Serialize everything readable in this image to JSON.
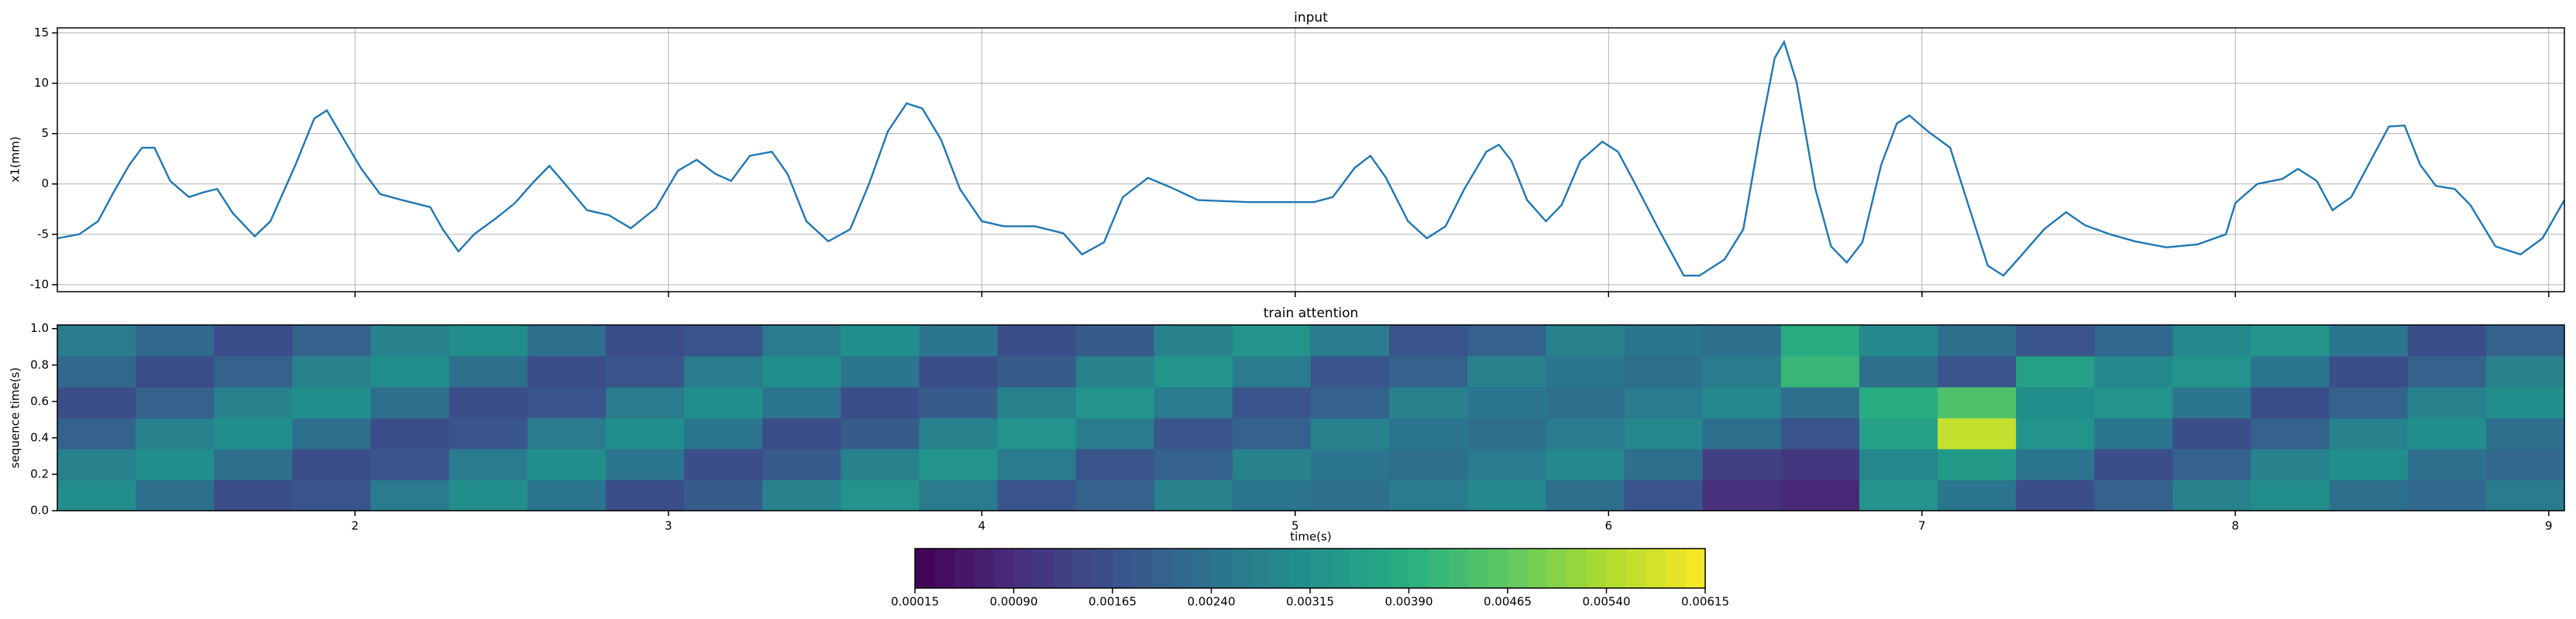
{
  "chart_data": [
    {
      "type": "line",
      "title": "input",
      "ylabel": "x1(mm)",
      "color": "#1f77b4",
      "grid": true,
      "x": [
        1.05,
        1.12,
        1.18,
        1.23,
        1.28,
        1.32,
        1.36,
        1.41,
        1.47,
        1.52,
        1.56,
        1.61,
        1.68,
        1.73,
        1.81,
        1.87,
        1.91,
        1.95,
        2.02,
        2.08,
        2.15,
        2.24,
        2.28,
        2.33,
        2.38,
        2.45,
        2.51,
        2.57,
        2.62,
        2.67,
        2.74,
        2.81,
        2.88,
        2.96,
        3.03,
        3.09,
        3.15,
        3.2,
        3.26,
        3.33,
        3.38,
        3.44,
        3.51,
        3.58,
        3.64,
        3.7,
        3.76,
        3.81,
        3.87,
        3.93,
        4.0,
        4.07,
        4.17,
        4.26,
        4.32,
        4.39,
        4.45,
        4.53,
        4.6,
        4.69,
        4.85,
        5.06,
        5.12,
        5.19,
        5.24,
        5.29,
        5.36,
        5.42,
        5.48,
        5.54,
        5.61,
        5.65,
        5.69,
        5.74,
        5.8,
        5.85,
        5.91,
        5.98,
        6.03,
        6.08,
        6.16,
        6.24,
        6.29,
        6.37,
        6.43,
        6.48,
        6.53,
        6.56,
        6.6,
        6.66,
        6.71,
        6.76,
        6.81,
        6.87,
        6.92,
        6.96,
        7.02,
        7.09,
        7.14,
        7.21,
        7.26,
        7.32,
        7.39,
        7.46,
        7.52,
        7.6,
        7.68,
        7.78,
        7.88,
        7.97,
        8.0,
        8.07,
        8.15,
        8.2,
        8.26,
        8.31,
        8.37,
        8.44,
        8.49,
        8.54,
        8.59,
        8.64,
        8.7,
        8.75,
        8.83,
        8.91,
        8.98,
        9.05
      ],
      "values": [
        -5.4,
        -5.0,
        -3.7,
        -0.8,
        1.9,
        3.6,
        3.6,
        0.3,
        -1.3,
        -0.8,
        -0.5,
        -2.9,
        -5.2,
        -3.7,
        1.9,
        6.5,
        7.3,
        5.2,
        1.5,
        -1.0,
        -1.6,
        -2.3,
        -4.5,
        -6.7,
        -5.0,
        -3.4,
        -1.9,
        0.2,
        1.8,
        0,
        -2.6,
        -3.1,
        -4.4,
        -2.4,
        1.3,
        2.4,
        1.0,
        0.3,
        2.8,
        3.2,
        1.0,
        -3.7,
        -5.7,
        -4.5,
        0,
        5.2,
        8.0,
        7.5,
        4.4,
        -0.5,
        -3.7,
        -4.2,
        -4.2,
        -4.9,
        -7.0,
        -5.8,
        -1.3,
        0.6,
        -0.3,
        -1.6,
        -1.8,
        -1.8,
        -1.3,
        1.6,
        2.8,
        0.6,
        -3.7,
        -5.4,
        -4.2,
        -0.5,
        3.2,
        3.9,
        2.3,
        -1.6,
        -3.7,
        -2.1,
        2.3,
        4.2,
        3.2,
        0.3,
        -4.5,
        -9.1,
        -9.1,
        -7.5,
        -4.5,
        4.4,
        12.5,
        14.1,
        10.1,
        -0.5,
        -6.2,
        -7.8,
        -5.8,
        1.9,
        6.0,
        6.8,
        5.2,
        3.6,
        -1.3,
        -8.1,
        -9.1,
        -7.0,
        -4.5,
        -2.8,
        -4.1,
        -5.0,
        -5.7,
        -6.3,
        -6.0,
        -5.0,
        -1.9,
        0,
        0.5,
        1.5,
        0.3,
        -2.6,
        -1.3,
        2.8,
        5.7,
        5.8,
        1.9,
        -0.2,
        -0.5,
        -2.1,
        -6.2,
        -7.0,
        -5.4,
        -1.6
      ],
      "xlim": [
        1.05,
        9.05
      ],
      "ylim": [
        -10.7,
        15.5
      ],
      "xticks": [
        2,
        3,
        4,
        5,
        6,
        7,
        8,
        9
      ],
      "yticks": [
        -10,
        -5,
        0,
        5,
        10,
        15
      ]
    },
    {
      "type": "heatmap",
      "title": "train attention",
      "xlabel": "time(s)",
      "ylabel": "sequence time(s)",
      "colormap": "viridis",
      "x": [
        1.175,
        1.425,
        1.675,
        1.925,
        2.175,
        2.425,
        2.675,
        2.925,
        3.175,
        3.425,
        3.675,
        3.925,
        4.175,
        4.425,
        4.675,
        4.925,
        5.175,
        5.425,
        5.675,
        5.925,
        6.175,
        6.425,
        6.675,
        6.925,
        7.175,
        7.425,
        7.675,
        7.925,
        8.175,
        8.425,
        8.675,
        8.925
      ],
      "y": [
        0.085,
        0.255,
        0.425,
        0.595,
        0.765,
        0.935
      ],
      "z": [
        [
          0.003,
          0.0024,
          0.0015,
          0.0018,
          0.0026,
          0.0031,
          0.0025,
          0.0016,
          0.0019,
          0.0027,
          0.0033,
          0.0026,
          0.0017,
          0.0021,
          0.0028,
          0.0025,
          0.0023,
          0.0026,
          0.0029,
          0.0024,
          0.0018,
          0.001,
          0.0008,
          0.0032,
          0.0025,
          0.0016,
          0.002,
          0.0027,
          0.003,
          0.0024,
          0.0022,
          0.0026
        ],
        [
          0.0028,
          0.003,
          0.0024,
          0.0015,
          0.0018,
          0.0026,
          0.0031,
          0.0025,
          0.0016,
          0.0019,
          0.0027,
          0.0033,
          0.0026,
          0.0017,
          0.0021,
          0.0028,
          0.0025,
          0.0023,
          0.0026,
          0.0029,
          0.0024,
          0.0013,
          0.0012,
          0.0029,
          0.0034,
          0.0025,
          0.0016,
          0.002,
          0.0027,
          0.003,
          0.0024,
          0.0022
        ],
        [
          0.002,
          0.0028,
          0.003,
          0.0024,
          0.0015,
          0.0018,
          0.0026,
          0.0031,
          0.0025,
          0.0016,
          0.0019,
          0.0027,
          0.0033,
          0.0026,
          0.0017,
          0.0021,
          0.0028,
          0.0025,
          0.0023,
          0.0026,
          0.0029,
          0.0024,
          0.0018,
          0.0036,
          0.0056,
          0.0032,
          0.0025,
          0.0016,
          0.002,
          0.0027,
          0.003,
          0.0024
        ],
        [
          0.0016,
          0.002,
          0.0028,
          0.003,
          0.0024,
          0.0015,
          0.0018,
          0.0026,
          0.0031,
          0.0025,
          0.0016,
          0.0019,
          0.0027,
          0.0033,
          0.0026,
          0.0017,
          0.0021,
          0.0028,
          0.0025,
          0.0023,
          0.0026,
          0.0029,
          0.0024,
          0.0039,
          0.0044,
          0.003,
          0.0032,
          0.0025,
          0.0016,
          0.002,
          0.0027,
          0.003
        ],
        [
          0.0022,
          0.0016,
          0.002,
          0.0028,
          0.003,
          0.0024,
          0.0015,
          0.0018,
          0.0026,
          0.0031,
          0.0025,
          0.0016,
          0.0019,
          0.0027,
          0.0033,
          0.0026,
          0.0017,
          0.0021,
          0.0028,
          0.0025,
          0.0023,
          0.0026,
          0.0042,
          0.0024,
          0.0018,
          0.0036,
          0.0029,
          0.0032,
          0.0025,
          0.0016,
          0.002,
          0.0027
        ],
        [
          0.0026,
          0.0022,
          0.0016,
          0.002,
          0.0028,
          0.003,
          0.0024,
          0.0015,
          0.0018,
          0.0026,
          0.0031,
          0.0025,
          0.0016,
          0.0019,
          0.0027,
          0.0033,
          0.0026,
          0.0017,
          0.0021,
          0.0028,
          0.0025,
          0.0023,
          0.0038,
          0.0029,
          0.0024,
          0.0018,
          0.0022,
          0.0029,
          0.0032,
          0.0025,
          0.0016,
          0.002
        ]
      ],
      "xlim": [
        1.05,
        9.05
      ],
      "ylim": [
        0,
        1.02
      ],
      "xticks": [
        2,
        3,
        4,
        5,
        6,
        7,
        8,
        9
      ],
      "yticks": [
        {
          "value": 0,
          "label": "0.0"
        },
        0.2,
        0.4,
        0.6,
        0.8,
        {
          "value": 1,
          "label": "1.0"
        }
      ],
      "clim": [
        0.00015,
        0.00615
      ],
      "levels": 40,
      "cticks": [
        {
          "value": 0.00015,
          "label": "0.00015"
        },
        {
          "value": 0.0009,
          "label": "0.00090"
        },
        {
          "value": 0.00165,
          "label": "0.00165"
        },
        {
          "value": 0.0024,
          "label": "0.00240"
        },
        {
          "value": 0.00315,
          "label": "0.00315"
        },
        {
          "value": 0.0039,
          "label": "0.00390"
        },
        {
          "value": 0.00465,
          "label": "0.00465"
        },
        {
          "value": 0.0054,
          "label": "0.00540"
        },
        {
          "value": 0.00615,
          "label": "0.00615"
        }
      ]
    }
  ]
}
